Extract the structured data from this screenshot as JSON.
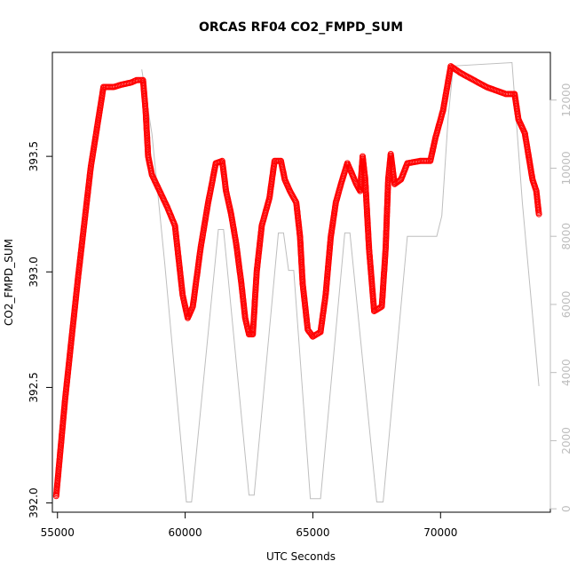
{
  "chart_data": {
    "type": "scatter",
    "title": "ORCAS RF04 CO2_FMPD_SUM",
    "xlabel": "UTC Seconds",
    "ylabel": "CO2_FMPD_SUM",
    "xlim": [
      54800,
      74300
    ],
    "ylim": [
      391.96,
      393.95
    ],
    "x_ticks": [
      55000,
      60000,
      65000,
      70000
    ],
    "x_tick_labels": [
      "55000",
      "60000",
      "65000",
      "70000"
    ],
    "y_ticks": [
      392.0,
      392.5,
      393.0,
      393.5
    ],
    "y_tick_labels": [
      "392.0",
      "392.5",
      "393.0",
      "393.5"
    ],
    "y2lim": [
      -100,
      13400
    ],
    "y2_ticks": [
      0,
      2000,
      4000,
      6000,
      8000,
      10000,
      12000
    ],
    "y2_tick_labels": [
      "0",
      "2000",
      "4000",
      "6000",
      "8000",
      "10000",
      "12000"
    ],
    "grid": false,
    "series": [
      {
        "role": "co2",
        "axis": "left",
        "marker": "open-circle",
        "color": "#ff0000",
        "points": [
          [
            54950,
            392.03
          ],
          [
            55300,
            392.45
          ],
          [
            55800,
            392.97
          ],
          [
            56300,
            393.45
          ],
          [
            56800,
            393.8
          ],
          [
            57200,
            393.8
          ],
          [
            57500,
            393.81
          ],
          [
            57900,
            393.82
          ],
          [
            58100,
            393.83
          ],
          [
            58350,
            393.83
          ],
          [
            58450,
            393.7
          ],
          [
            58550,
            393.5
          ],
          [
            58700,
            393.42
          ],
          [
            59000,
            393.35
          ],
          [
            59300,
            393.28
          ],
          [
            59600,
            393.2
          ],
          [
            59750,
            393.05
          ],
          [
            59900,
            392.9
          ],
          [
            60100,
            392.8
          ],
          [
            60300,
            392.85
          ],
          [
            60600,
            393.1
          ],
          [
            60900,
            393.3
          ],
          [
            61200,
            393.47
          ],
          [
            61450,
            393.48
          ],
          [
            61600,
            393.35
          ],
          [
            61800,
            393.25
          ],
          [
            62000,
            393.12
          ],
          [
            62200,
            392.95
          ],
          [
            62350,
            392.8
          ],
          [
            62500,
            392.73
          ],
          [
            62650,
            392.73
          ],
          [
            62800,
            393.0
          ],
          [
            63000,
            393.2
          ],
          [
            63300,
            393.32
          ],
          [
            63500,
            393.48
          ],
          [
            63750,
            393.48
          ],
          [
            63900,
            393.4
          ],
          [
            64100,
            393.35
          ],
          [
            64350,
            393.3
          ],
          [
            64500,
            393.15
          ],
          [
            64600,
            392.95
          ],
          [
            64800,
            392.75
          ],
          [
            65000,
            392.72
          ],
          [
            65300,
            392.74
          ],
          [
            65500,
            392.9
          ],
          [
            65700,
            393.15
          ],
          [
            65900,
            393.3
          ],
          [
            66100,
            393.38
          ],
          [
            66350,
            393.47
          ],
          [
            66550,
            393.42
          ],
          [
            66700,
            393.38
          ],
          [
            66850,
            393.35
          ],
          [
            66950,
            393.5
          ],
          [
            67050,
            393.4
          ],
          [
            67200,
            393.1
          ],
          [
            67400,
            392.83
          ],
          [
            67700,
            392.85
          ],
          [
            67850,
            393.1
          ],
          [
            67950,
            393.4
          ],
          [
            68050,
            393.51
          ],
          [
            68200,
            393.38
          ],
          [
            68450,
            393.4
          ],
          [
            68700,
            393.47
          ],
          [
            69200,
            393.48
          ],
          [
            69600,
            393.48
          ],
          [
            69800,
            393.58
          ],
          [
            70100,
            393.7
          ],
          [
            70400,
            393.89
          ],
          [
            70800,
            393.86
          ],
          [
            71300,
            393.83
          ],
          [
            71800,
            393.8
          ],
          [
            72300,
            393.78
          ],
          [
            72550,
            393.77
          ],
          [
            72900,
            393.77
          ],
          [
            73050,
            393.66
          ],
          [
            73300,
            393.6
          ],
          [
            73450,
            393.5
          ],
          [
            73600,
            393.4
          ],
          [
            73750,
            393.35
          ],
          [
            73850,
            393.25
          ]
        ]
      },
      {
        "role": "altitude",
        "axis": "right",
        "marker": "line",
        "color": "#bebebe",
        "points": [
          [
            58300,
            12900
          ],
          [
            58700,
            11000
          ],
          [
            59200,
            7200
          ],
          [
            60050,
            200
          ],
          [
            60250,
            200
          ],
          [
            61300,
            8200
          ],
          [
            61500,
            8200
          ],
          [
            62500,
            400
          ],
          [
            62700,
            400
          ],
          [
            63650,
            8100
          ],
          [
            63850,
            8100
          ],
          [
            64050,
            7000
          ],
          [
            64250,
            7000
          ],
          [
            64900,
            300
          ],
          [
            65300,
            300
          ],
          [
            66250,
            8100
          ],
          [
            66450,
            8100
          ],
          [
            67500,
            200
          ],
          [
            67750,
            200
          ],
          [
            68700,
            8000
          ],
          [
            68950,
            8000
          ],
          [
            69850,
            8000
          ],
          [
            70050,
            8600
          ],
          [
            70300,
            11500
          ],
          [
            70500,
            13000
          ],
          [
            72800,
            13100
          ],
          [
            73200,
            9000
          ],
          [
            73850,
            3600
          ]
        ]
      }
    ]
  }
}
